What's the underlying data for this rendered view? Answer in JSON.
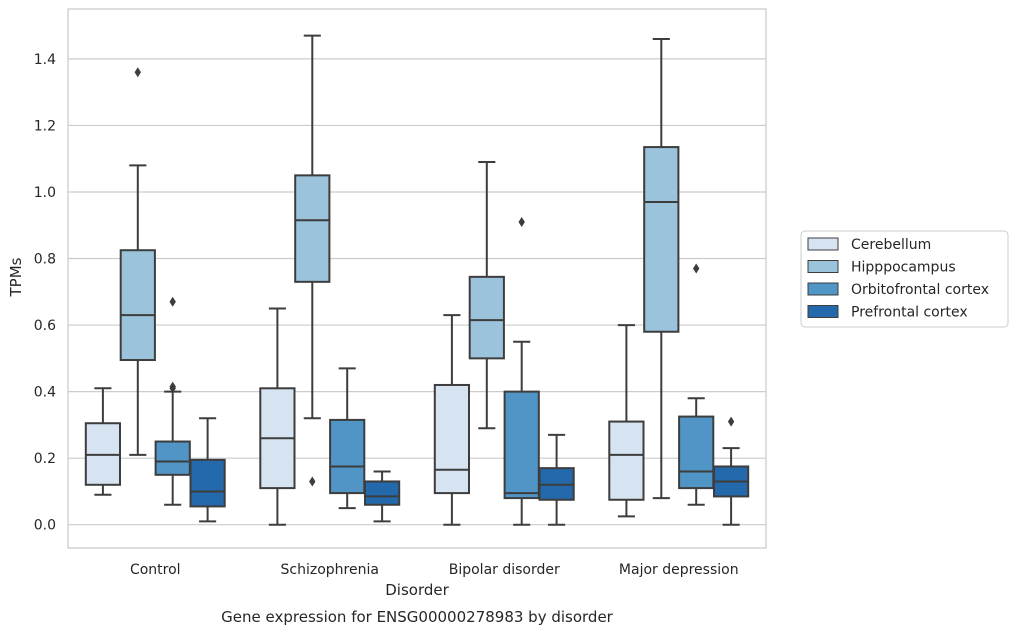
{
  "caption": "Gene expression for ENSG00000278983 by disorder",
  "chart_data": {
    "type": "box",
    "xlabel": "Disorder",
    "ylabel": "TPMs",
    "ylim": [
      -0.07,
      1.55
    ],
    "yticks": [
      "0.0",
      "0.2",
      "0.4",
      "0.6",
      "0.8",
      "1.0",
      "1.2",
      "1.4"
    ],
    "grid": "horizontal",
    "legend_position": "right",
    "categories": [
      "Control",
      "Schizophrenia",
      "Bipolar disorder",
      "Major depression"
    ],
    "series": [
      {
        "name": "Cerebellum",
        "color": "#d6e4f2",
        "boxes": [
          {
            "whislo": 0.09,
            "q1": 0.12,
            "med": 0.21,
            "q3": 0.305,
            "whishi": 0.41,
            "fliers": []
          },
          {
            "whislo": 0.0,
            "q1": 0.11,
            "med": 0.26,
            "q3": 0.41,
            "whishi": 0.65,
            "fliers": []
          },
          {
            "whislo": 0.0,
            "q1": 0.095,
            "med": 0.165,
            "q3": 0.42,
            "whishi": 0.63,
            "fliers": []
          },
          {
            "whislo": 0.025,
            "q1": 0.075,
            "med": 0.21,
            "q3": 0.31,
            "whishi": 0.6,
            "fliers": []
          }
        ]
      },
      {
        "name": "Hipppocampus",
        "color": "#9bc3dc",
        "boxes": [
          {
            "whislo": 0.21,
            "q1": 0.495,
            "med": 0.63,
            "q3": 0.825,
            "whishi": 1.08,
            "fliers": [
              1.36
            ]
          },
          {
            "whislo": 0.32,
            "q1": 0.73,
            "med": 0.915,
            "q3": 1.05,
            "whishi": 1.47,
            "fliers": [
              0.13
            ]
          },
          {
            "whislo": 0.29,
            "q1": 0.5,
            "med": 0.615,
            "q3": 0.745,
            "whishi": 1.09,
            "fliers": []
          },
          {
            "whislo": 0.08,
            "q1": 0.58,
            "med": 0.97,
            "q3": 1.135,
            "whishi": 1.46,
            "fliers": []
          }
        ]
      },
      {
        "name": "Orbitofrontal cortex",
        "color": "#5095c6",
        "boxes": [
          {
            "whislo": 0.06,
            "q1": 0.15,
            "med": 0.19,
            "q3": 0.25,
            "whishi": 0.4,
            "fliers": [
              0.67,
              0.415,
              0.41
            ]
          },
          {
            "whislo": 0.05,
            "q1": 0.095,
            "med": 0.175,
            "q3": 0.315,
            "whishi": 0.47,
            "fliers": []
          },
          {
            "whislo": 0.0,
            "q1": 0.08,
            "med": 0.095,
            "q3": 0.4,
            "whishi": 0.55,
            "fliers": [
              0.91
            ]
          },
          {
            "whislo": 0.06,
            "q1": 0.11,
            "med": 0.16,
            "q3": 0.325,
            "whishi": 0.38,
            "fliers": [
              0.77
            ]
          }
        ]
      },
      {
        "name": "Prefrontal cortex",
        "color": "#2369ab",
        "boxes": [
          {
            "whislo": 0.01,
            "q1": 0.055,
            "med": 0.1,
            "q3": 0.195,
            "whishi": 0.32,
            "fliers": []
          },
          {
            "whislo": 0.01,
            "q1": 0.06,
            "med": 0.085,
            "q3": 0.13,
            "whishi": 0.16,
            "fliers": []
          },
          {
            "whislo": 0.0,
            "q1": 0.075,
            "med": 0.12,
            "q3": 0.17,
            "whishi": 0.27,
            "fliers": []
          },
          {
            "whislo": 0.0,
            "q1": 0.085,
            "med": 0.13,
            "q3": 0.175,
            "whishi": 0.23,
            "fliers": [
              0.31
            ]
          }
        ]
      }
    ]
  },
  "style": {
    "grid_color": "#cccccc",
    "frame_color": "#cccccc",
    "line_color": "#3d3d3d",
    "text_color": "#262626"
  }
}
